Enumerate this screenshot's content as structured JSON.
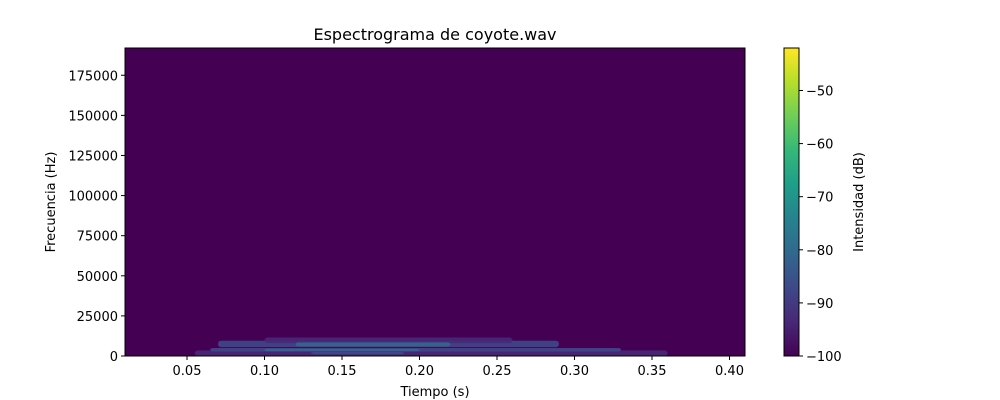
{
  "chart_data": {
    "type": "heatmap",
    "title": "Espectrograma de coyote.wav",
    "xlabel": "Tiempo (s)",
    "ylabel": "Frecuencia (Hz)",
    "xlim": [
      0.01,
      0.41
    ],
    "ylim": [
      0,
      192000
    ],
    "x_ticks": [
      0.05,
      0.1,
      0.15,
      0.2,
      0.25,
      0.3,
      0.35,
      0.4
    ],
    "x_tick_labels": [
      "0.05",
      "0.10",
      "0.15",
      "0.20",
      "0.25",
      "0.30",
      "0.35",
      "0.40"
    ],
    "y_ticks": [
      0,
      25000,
      50000,
      75000,
      100000,
      125000,
      150000,
      175000
    ],
    "y_tick_labels": [
      "0",
      "25000",
      "50000",
      "75000",
      "100000",
      "125000",
      "150000",
      "175000"
    ],
    "colorbar": {
      "label": "Intensidad (dB)",
      "range": [
        -100,
        -42
      ],
      "ticks": [
        -100,
        -90,
        -80,
        -70,
        -60,
        -50
      ],
      "tick_labels": [
        "−100",
        "−90",
        "−80",
        "−70",
        "−60",
        "−50"
      ],
      "colormap": "viridis"
    },
    "background_db": -100,
    "regions": [
      {
        "t_start": 0.055,
        "t_end": 0.36,
        "f_low": 0,
        "f_high": 3500,
        "db": -93
      },
      {
        "t_start": 0.065,
        "t_end": 0.33,
        "f_low": 2800,
        "f_high": 5000,
        "db": -88
      },
      {
        "t_start": 0.07,
        "t_end": 0.29,
        "f_low": 5500,
        "f_high": 9500,
        "db": -90
      },
      {
        "t_start": 0.1,
        "t_end": 0.26,
        "f_low": 8000,
        "f_high": 11500,
        "db": -94
      },
      {
        "t_start": 0.12,
        "t_end": 0.22,
        "f_low": 6000,
        "f_high": 8500,
        "db": -82
      },
      {
        "t_start": 0.1,
        "t_end": 0.2,
        "f_low": 3000,
        "f_high": 4500,
        "db": -80
      },
      {
        "t_start": 0.13,
        "t_end": 0.19,
        "f_low": 1000,
        "f_high": 2500,
        "db": -86
      }
    ]
  },
  "colors": {
    "background_cell": "#440154",
    "viridis_stops": [
      "#440154",
      "#482878",
      "#3e4989",
      "#31688e",
      "#26828e",
      "#1f9e89",
      "#35b779",
      "#6ece58",
      "#b5de2b",
      "#fde725"
    ]
  }
}
